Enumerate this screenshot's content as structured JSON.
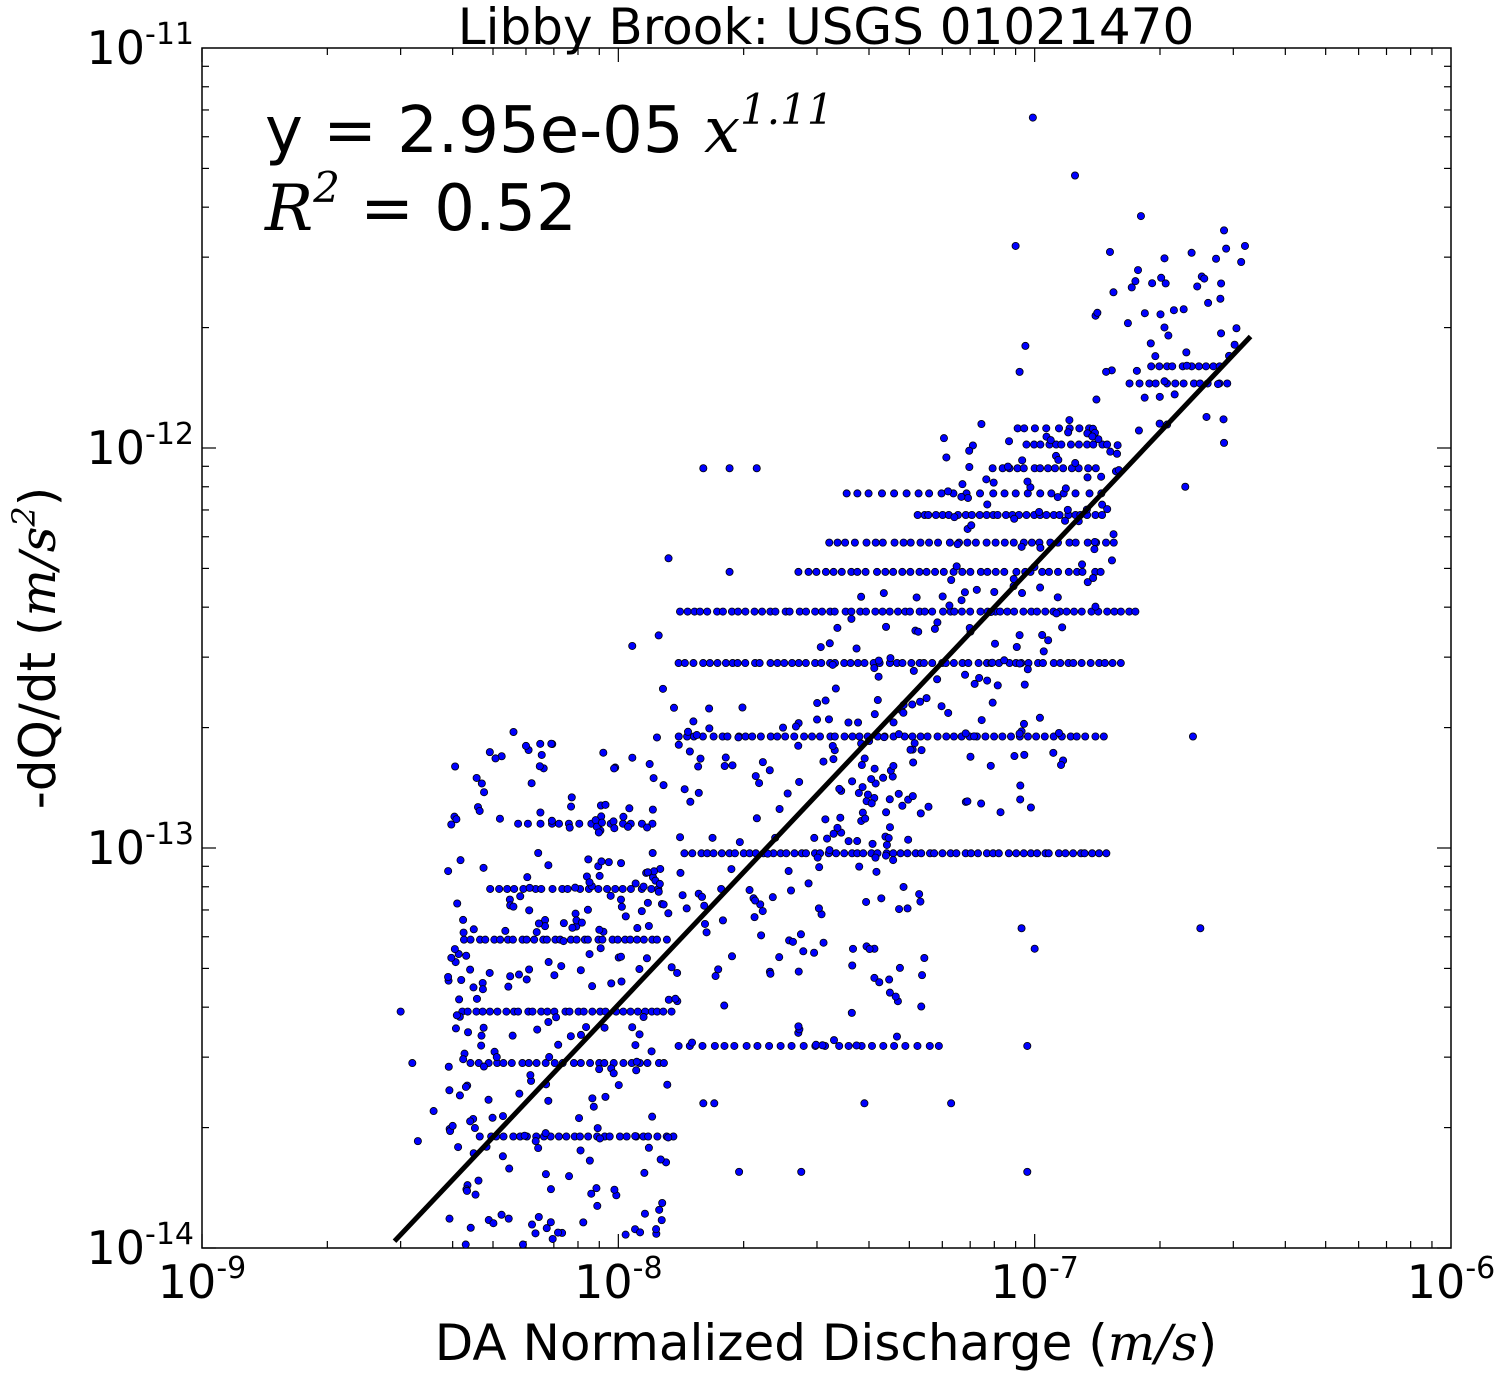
{
  "chart_data": {
    "type": "scatter",
    "title": "Libby Brook: USGS 01021470",
    "xlabel": "DA Normalized Discharge",
    "xlabel_unit": "m/s",
    "ylabel": "-dQ/dt",
    "ylabel_unit": "m/s",
    "ylabel_unit_exp": "2",
    "x_scale": "log",
    "y_scale": "log",
    "xlim": [
      1e-09,
      1e-06
    ],
    "ylim": [
      1e-14,
      1e-11
    ],
    "x_ticks": [
      {
        "base": "10",
        "exp": "-9",
        "value": 1e-09
      },
      {
        "base": "10",
        "exp": "-8",
        "value": 1e-08
      },
      {
        "base": "10",
        "exp": "-7",
        "value": 1e-07
      },
      {
        "base": "10",
        "exp": "-6",
        "value": 1e-06
      }
    ],
    "y_ticks": [
      {
        "base": "10",
        "exp": "-14",
        "value": 1e-14
      },
      {
        "base": "10",
        "exp": "-13",
        "value": 1e-13
      },
      {
        "base": "10",
        "exp": "-12",
        "value": 1e-12
      },
      {
        "base": "10",
        "exp": "-11",
        "value": 1e-11
      }
    ],
    "grid": false,
    "point_color": "#0000ff",
    "line_color": "#000000",
    "fit": {
      "equation_prefix": "y = 2.95e-05 ",
      "equation_var": "x",
      "equation_exp": "1.11",
      "r2_var": "R",
      "r2_exp": "2",
      "r2_value": " = 0.52",
      "x_start": 2.9e-09,
      "y_start": 1.04e-14,
      "x_end": 3.3e-07,
      "y_end": 1.9e-12
    },
    "scatter_rows": [
      {
        "y": 1.9e-14,
        "x_min": 4.7e-09,
        "x_max": 1.35e-08,
        "n": 26
      },
      {
        "y": 2.9e-14,
        "x_min": 4.4e-09,
        "x_max": 1.3e-08,
        "n": 24
      },
      {
        "y": 3.2e-14,
        "x_min": 1.4e-08,
        "x_max": 5.9e-08,
        "n": 24
      },
      {
        "y": 3.9e-14,
        "x_min": 4.2e-09,
        "x_max": 1.35e-08,
        "n": 30
      },
      {
        "y": 5.9e-14,
        "x_min": 4.3e-09,
        "x_max": 1.3e-08,
        "n": 30
      },
      {
        "y": 7.9e-14,
        "x_min": 4.9e-09,
        "x_max": 1.25e-08,
        "n": 20
      },
      {
        "y": 9.7e-14,
        "x_min": 1.45e-08,
        "x_max": 1.5e-07,
        "n": 60
      },
      {
        "y": 1.15e-13,
        "x_min": 5.8e-09,
        "x_max": 1.2e-08,
        "n": 14
      },
      {
        "y": 1.9e-13,
        "x_min": 1.4e-08,
        "x_max": 1.45e-07,
        "n": 52
      },
      {
        "y": 2.9e-13,
        "x_min": 1.4e-08,
        "x_max": 1.6e-07,
        "n": 60
      },
      {
        "y": 3.9e-13,
        "x_min": 1.4e-08,
        "x_max": 1.75e-07,
        "n": 62
      },
      {
        "y": 4.9e-13,
        "x_min": 2.7e-08,
        "x_max": 1.45e-07,
        "n": 36
      },
      {
        "y": 5.8e-13,
        "x_min": 3.2e-08,
        "x_max": 1.55e-07,
        "n": 32
      },
      {
        "y": 6.8e-13,
        "x_min": 5.2e-08,
        "x_max": 1.45e-07,
        "n": 28
      },
      {
        "y": 7.7e-13,
        "x_min": 3.5e-08,
        "x_max": 1.45e-07,
        "n": 22
      },
      {
        "y": 8.9e-13,
        "x_min": 8e-08,
        "x_max": 1.4e-07,
        "n": 14
      },
      {
        "y": 1.02e-12,
        "x_min": 9.5e-08,
        "x_max": 1.5e-07,
        "n": 12
      },
      {
        "y": 1.12e-12,
        "x_min": 9e-08,
        "x_max": 1.35e-07,
        "n": 8
      },
      {
        "y": 1.45e-12,
        "x_min": 1.7e-07,
        "x_max": 2.9e-07,
        "n": 12
      },
      {
        "y": 1.6e-12,
        "x_min": 1.9e-07,
        "x_max": 2.8e-07,
        "n": 10
      }
    ],
    "scatter_clouds": [
      {
        "x_min": 3.9e-09,
        "x_max": 1.35e-08,
        "y_min": 1.05e-14,
        "y_max": 1.9e-13,
        "n": 260
      },
      {
        "x_min": 1.35e-08,
        "x_max": 5.5e-08,
        "y_min": 3.2e-14,
        "y_max": 2.4e-13,
        "n": 150
      },
      {
        "x_min": 3e-08,
        "x_max": 1.2e-07,
        "y_min": 1e-13,
        "y_max": 4.5e-13,
        "n": 110
      },
      {
        "x_min": 6e-08,
        "x_max": 1.6e-07,
        "y_min": 4e-13,
        "y_max": 1.2e-12,
        "n": 70
      },
      {
        "x_min": 1.4e-07,
        "x_max": 3.2e-07,
        "y_min": 1.1e-12,
        "y_max": 3.3e-12,
        "n": 50
      }
    ],
    "scatter_points": [
      {
        "x": 9.9e-08,
        "y": 6.7e-12
      },
      {
        "x": 1.25e-07,
        "y": 4.8e-12
      },
      {
        "x": 1.8e-07,
        "y": 3.8e-12
      },
      {
        "x": 9e-08,
        "y": 3.2e-12
      },
      {
        "x": 2.85e-07,
        "y": 3.5e-12
      },
      {
        "x": 3.2e-07,
        "y": 3.2e-12
      },
      {
        "x": 9.5e-08,
        "y": 1.8e-12
      },
      {
        "x": 9.2e-08,
        "y": 1.55e-12
      },
      {
        "x": 2.85e-07,
        "y": 1.03e-12
      },
      {
        "x": 2.3e-07,
        "y": 8e-13
      },
      {
        "x": 1.6e-08,
        "y": 8.9e-13
      },
      {
        "x": 1.85e-08,
        "y": 8.9e-13
      },
      {
        "x": 2.15e-08,
        "y": 8.9e-13
      },
      {
        "x": 1.32e-08,
        "y": 5.3e-13
      },
      {
        "x": 1.85e-08,
        "y": 4.9e-13
      },
      {
        "x": 1.08e-08,
        "y": 3.2e-13
      },
      {
        "x": 1.25e-08,
        "y": 3.4e-13
      },
      {
        "x": 1.28e-08,
        "y": 2.5e-13
      },
      {
        "x": 5.6e-09,
        "y": 1.95e-13
      },
      {
        "x": 6e-09,
        "y": 1.8e-13
      },
      {
        "x": 4.7e-09,
        "y": 1.45e-13
      },
      {
        "x": 3e-09,
        "y": 3.9e-14
      },
      {
        "x": 3.2e-09,
        "y": 2.9e-14
      },
      {
        "x": 3.6e-09,
        "y": 2.2e-14
      },
      {
        "x": 3.3e-09,
        "y": 1.85e-14
      },
      {
        "x": 4.3e-09,
        "y": 1.02e-14
      },
      {
        "x": 5.9e-09,
        "y": 1.02e-14
      },
      {
        "x": 2.4e-07,
        "y": 1.9e-13
      },
      {
        "x": 2.5e-07,
        "y": 6.3e-14
      },
      {
        "x": 9.6e-08,
        "y": 1.55e-14
      },
      {
        "x": 1e-07,
        "y": 5.6e-14
      },
      {
        "x": 9.6e-08,
        "y": 3.2e-14
      },
      {
        "x": 9.3e-08,
        "y": 6.3e-14
      },
      {
        "x": 6.3e-08,
        "y": 2.3e-14
      },
      {
        "x": 3.9e-08,
        "y": 2.3e-14
      },
      {
        "x": 2.75e-08,
        "y": 1.55e-14
      },
      {
        "x": 1.95e-08,
        "y": 1.55e-14
      },
      {
        "x": 1.6e-08,
        "y": 2.3e-14
      },
      {
        "x": 1.7e-08,
        "y": 2.3e-14
      }
    ]
  }
}
